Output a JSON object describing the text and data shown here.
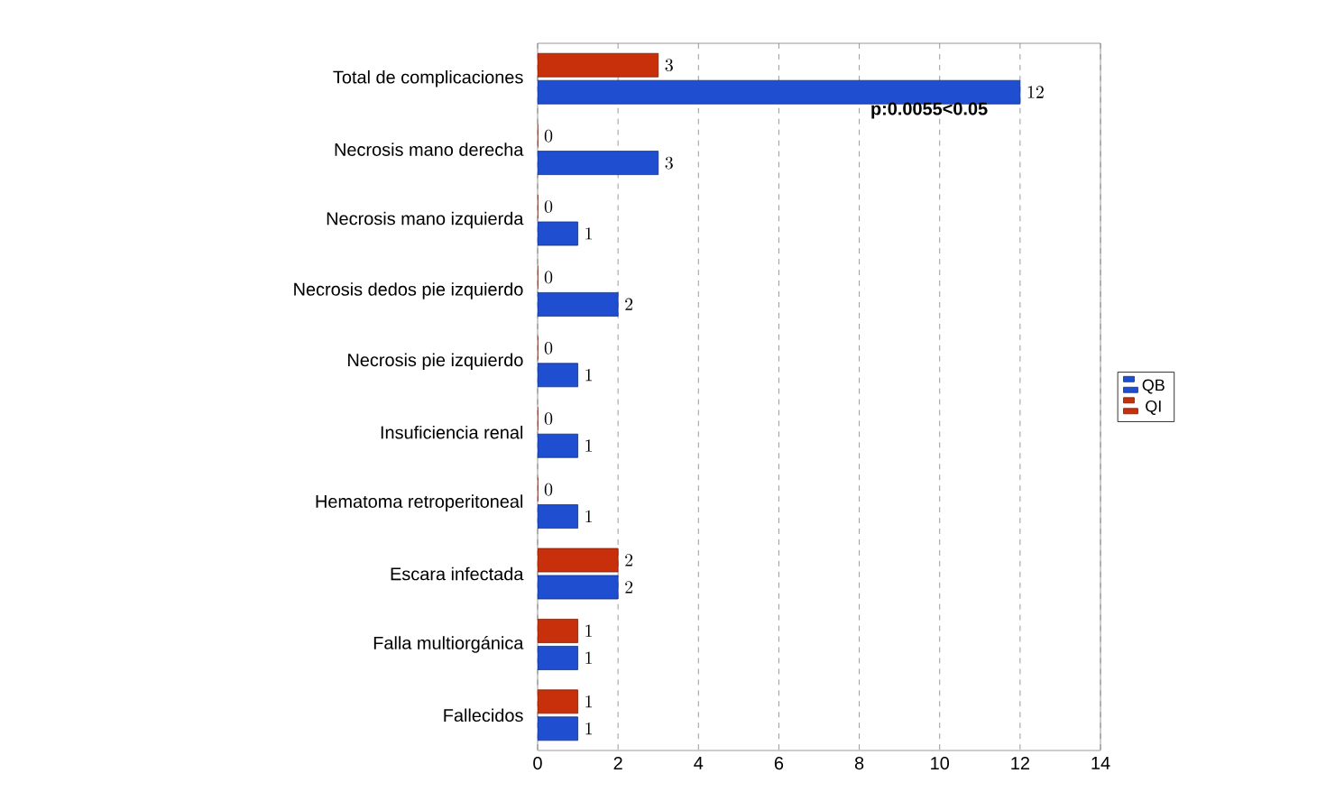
{
  "chart_data": {
    "type": "bar",
    "orientation": "horizontal",
    "categories": [
      "Total de complicaciones",
      "Necrosis mano derecha",
      "Necrosis mano izquierda",
      "Necrosis dedos pie izquierdo",
      "Necrosis pie izquierdo",
      "Insuficiencia renal",
      "Hematoma retroperitoneal",
      "Escara infectada",
      "Falla multiorgánica",
      "Fallecidos"
    ],
    "series": [
      {
        "name": "QB",
        "color": "#1f4fd0",
        "values": [
          12,
          3,
          1,
          2,
          1,
          1,
          1,
          2,
          1,
          1
        ]
      },
      {
        "name": "QI",
        "color": "#c8300c",
        "values": [
          3,
          0,
          0,
          0,
          0,
          0,
          0,
          2,
          1,
          1
        ]
      }
    ],
    "xlim": [
      0,
      14
    ],
    "xticks": [
      0,
      2,
      4,
      6,
      8,
      10,
      12,
      14
    ],
    "grid": "x",
    "legend": "right",
    "data_labels": true,
    "annotations": [
      "p:0.0055<0.05"
    ]
  }
}
